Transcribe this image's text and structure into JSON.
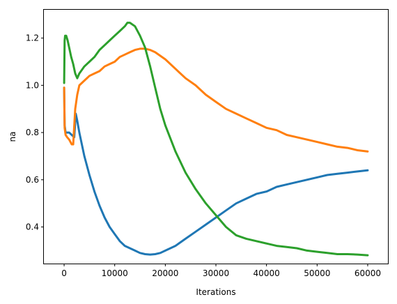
{
  "chart_data": {
    "type": "line",
    "title": "",
    "xlabel": "Iterations",
    "ylabel": "na",
    "xlim": [
      -4000,
      64000
    ],
    "ylim": [
      0.245,
      1.32
    ],
    "xticks": [
      0,
      10000,
      20000,
      30000,
      40000,
      50000,
      60000
    ],
    "yticks": [
      0.4,
      0.6,
      0.8,
      1.0,
      1.2
    ],
    "xtick_labels": [
      "0",
      "10000",
      "20000",
      "30000",
      "40000",
      "50000",
      "60000"
    ],
    "ytick_labels": [
      "0.4",
      "0.6",
      "0.8",
      "1.0",
      "1.2"
    ],
    "grid": false,
    "legend": "none",
    "series": [
      {
        "color": "#1f77b4",
        "x": [
          0,
          100,
          300,
          500,
          1000,
          1500,
          2000,
          2300,
          2600,
          3000,
          4000,
          5000,
          6000,
          7000,
          8000,
          9000,
          10000,
          11000,
          12000,
          13000,
          14000,
          15000,
          16000,
          17000,
          18000,
          19000,
          20000,
          22000,
          24000,
          26000,
          28000,
          30000,
          32000,
          34000,
          36000,
          38000,
          40000,
          42000,
          44000,
          46000,
          48000,
          50000,
          52000,
          54000,
          56000,
          58000,
          60000
        ],
        "y": [
          0.99,
          0.83,
          0.8,
          0.8,
          0.8,
          0.79,
          0.78,
          0.88,
          0.85,
          0.8,
          0.7,
          0.62,
          0.55,
          0.49,
          0.44,
          0.4,
          0.37,
          0.34,
          0.32,
          0.31,
          0.3,
          0.29,
          0.285,
          0.283,
          0.285,
          0.29,
          0.3,
          0.32,
          0.35,
          0.38,
          0.41,
          0.44,
          0.47,
          0.5,
          0.52,
          0.54,
          0.55,
          0.57,
          0.58,
          0.59,
          0.6,
          0.61,
          0.62,
          0.625,
          0.63,
          0.635,
          0.64
        ]
      },
      {
        "color": "#ff7f0e",
        "x": [
          0,
          100,
          300,
          600,
          1000,
          1500,
          1800,
          2200,
          2600,
          3000,
          4000,
          5000,
          6000,
          7000,
          8000,
          9000,
          10000,
          11000,
          12000,
          13000,
          14000,
          15000,
          16000,
          17000,
          18000,
          20000,
          22000,
          24000,
          26000,
          28000,
          30000,
          32000,
          34000,
          36000,
          38000,
          40000,
          42000,
          44000,
          46000,
          48000,
          50000,
          52000,
          54000,
          56000,
          58000,
          60000
        ],
        "y": [
          0.99,
          0.82,
          0.79,
          0.78,
          0.77,
          0.75,
          0.75,
          0.9,
          0.96,
          1.0,
          1.02,
          1.04,
          1.05,
          1.06,
          1.08,
          1.09,
          1.1,
          1.12,
          1.13,
          1.14,
          1.15,
          1.155,
          1.155,
          1.15,
          1.14,
          1.11,
          1.07,
          1.03,
          1.0,
          0.96,
          0.93,
          0.9,
          0.88,
          0.86,
          0.84,
          0.82,
          0.81,
          0.79,
          0.78,
          0.77,
          0.76,
          0.75,
          0.74,
          0.735,
          0.725,
          0.72
        ]
      },
      {
        "color": "#2ca02c",
        "x": [
          0,
          100,
          200,
          400,
          700,
          1000,
          1400,
          1800,
          2200,
          2600,
          3000,
          4000,
          5000,
          6000,
          7000,
          8000,
          9000,
          10000,
          11000,
          12000,
          12500,
          13000,
          14000,
          15000,
          16000,
          17000,
          18000,
          19000,
          20000,
          22000,
          24000,
          26000,
          28000,
          30000,
          32000,
          34000,
          36000,
          38000,
          40000,
          42000,
          44000,
          46000,
          48000,
          50000,
          52000,
          54000,
          56000,
          58000,
          60000
        ],
        "y": [
          1.01,
          1.19,
          1.21,
          1.21,
          1.19,
          1.16,
          1.12,
          1.09,
          1.05,
          1.03,
          1.05,
          1.08,
          1.1,
          1.12,
          1.15,
          1.17,
          1.19,
          1.21,
          1.23,
          1.25,
          1.265,
          1.265,
          1.25,
          1.21,
          1.16,
          1.08,
          0.99,
          0.9,
          0.83,
          0.72,
          0.63,
          0.56,
          0.5,
          0.45,
          0.4,
          0.365,
          0.35,
          0.34,
          0.33,
          0.32,
          0.315,
          0.31,
          0.3,
          0.295,
          0.29,
          0.285,
          0.285,
          0.283,
          0.28
        ]
      }
    ]
  }
}
